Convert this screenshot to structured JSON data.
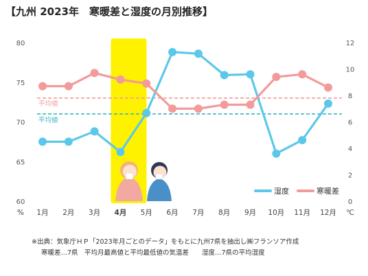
{
  "chart_data": {
    "type": "line",
    "title": "【九州 2023年　寒暖差と湿度の月別推移】",
    "categories": [
      "1月",
      "2月",
      "3月",
      "4月",
      "5月",
      "6月",
      "7月",
      "8月",
      "9月",
      "10月",
      "11月",
      "12月"
    ],
    "highlight_category": "4月",
    "y_left": {
      "unit": "%",
      "min": 60,
      "max": 80,
      "ticks": [
        60,
        65,
        70,
        75,
        80
      ]
    },
    "y_right": {
      "unit": "℃",
      "min": 0,
      "max": 12,
      "ticks": [
        0,
        2,
        4,
        6,
        8,
        10,
        12
      ]
    },
    "series": [
      {
        "name": "湿度",
        "axis": "left",
        "color": "#5bc8ea",
        "values": [
          67.5,
          67.5,
          68.8,
          66.2,
          71.1,
          78.8,
          78.6,
          75.9,
          76.0,
          66.0,
          67.7,
          72.3
        ]
      },
      {
        "name": "寒暖差",
        "axis": "right",
        "color": "#f39a9a",
        "values": [
          8.7,
          8.7,
          9.7,
          9.2,
          8.9,
          7.0,
          7.0,
          7.3,
          7.3,
          9.4,
          9.6,
          8.6
        ]
      }
    ],
    "reference_lines": [
      {
        "label": "平均値",
        "axis": "right",
        "value": 7.8,
        "color": "#f39a9a"
      },
      {
        "label": "平均値",
        "axis": "left",
        "value": 71.0,
        "color": "#3ab5c0"
      }
    ],
    "legend_position": "bottom-right",
    "grid": false
  },
  "notes": {
    "line1": "※出典：気象庁ＨＰ「2023年月ごとのデータ」をもとに九州7県を抽出し㈱フランソア作成",
    "line2": "寒暖差…7県　平均月最高値と平均最低値の気温差　　湿度…7県の平均湿度"
  }
}
